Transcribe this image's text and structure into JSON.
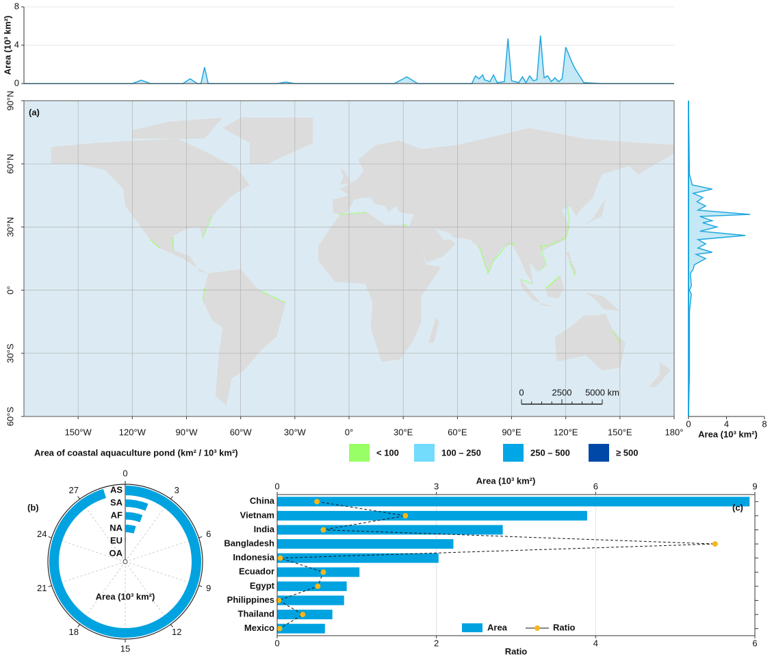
{
  "chart_data": [
    {
      "type": "area",
      "y_label": "Area (10³ km²)",
      "color": "#1fa7df",
      "fill": "#c4e8f6",
      "x": [
        -180,
        -120,
        -115,
        -110,
        -92,
        -88,
        -84,
        -82,
        -80,
        -78,
        -60,
        -40,
        -35,
        -30,
        0,
        25,
        32,
        38,
        60,
        68,
        70,
        72,
        74,
        75,
        78,
        80,
        82,
        86,
        88,
        90,
        94,
        96,
        98,
        100,
        102,
        104,
        106,
        108,
        110,
        112,
        114,
        116,
        118,
        120,
        123,
        125,
        130,
        140,
        180
      ],
      "values": [
        0,
        0,
        0.35,
        0,
        0,
        0.5,
        0,
        0,
        1.7,
        0,
        0,
        0,
        0.15,
        0,
        0,
        0,
        0.7,
        0,
        0,
        0,
        0.8,
        0.5,
        0.9,
        0.4,
        0.2,
        0.9,
        0.1,
        0.2,
        4.7,
        0.3,
        0.1,
        0.7,
        0.1,
        0.8,
        0.3,
        0.4,
        5.0,
        0.6,
        0.8,
        0.2,
        0.6,
        0.2,
        0.5,
        3.8,
        2.4,
        1.6,
        0.1,
        0,
        0
      ],
      "xlim": [
        -180,
        180
      ],
      "ylim": [
        0,
        8
      ],
      "yticks": [
        0,
        4,
        8
      ],
      "grid": true
    },
    {
      "type": "map",
      "label": "(a)",
      "xlim": [
        -180,
        180
      ],
      "ylim": [
        -60,
        90
      ],
      "xticks": [
        {
          "value": -150,
          "label": "150°W"
        },
        {
          "value": -120,
          "label": "120°W"
        },
        {
          "value": -90,
          "label": "90°W"
        },
        {
          "value": -60,
          "label": "60°W"
        },
        {
          "value": -30,
          "label": "30°W"
        },
        {
          "value": 0,
          "label": "0°"
        },
        {
          "value": 30,
          "label": "30°E"
        },
        {
          "value": 60,
          "label": "60°E"
        },
        {
          "value": 90,
          "label": "90°E"
        },
        {
          "value": 120,
          "label": "120°E"
        },
        {
          "value": 150,
          "label": "150°E"
        },
        {
          "value": 180,
          "label": "180°"
        }
      ],
      "yticks": [
        {
          "value": -60,
          "label": "60°S"
        },
        {
          "value": -30,
          "label": "30°S"
        },
        {
          "value": 0,
          "label": "0°"
        },
        {
          "value": 30,
          "label": "30°N"
        },
        {
          "value": 60,
          "label": "60°N"
        },
        {
          "value": 90,
          "label": "90°N"
        }
      ],
      "scale_bar": [
        0,
        2500,
        {
          "value": 5000,
          "label": "5000 km"
        }
      ],
      "legend": {
        "title": "Area of coastal aquaculture pond (km² / 10³ km²)",
        "classes": [
          {
            "label": "< 100",
            "color": "#99ff66"
          },
          {
            "label": "100 – 250",
            "color": "#73dbfc"
          },
          {
            "label": "250 – 500",
            "color": "#00a6e6"
          },
          {
            "label": "≥ 500",
            "color": "#0048a8"
          }
        ]
      }
    },
    {
      "type": "area",
      "x_label": "Area (10³ km²)",
      "color": "#1fa7df",
      "fill": "#c4e8f6",
      "y": [
        -60,
        -40,
        -10,
        -2,
        0,
        2,
        8,
        10,
        12,
        15,
        17,
        18,
        20,
        22,
        24,
        26,
        28,
        30,
        32,
        33,
        35,
        36,
        38,
        40,
        42,
        44,
        46,
        48,
        50,
        55,
        90
      ],
      "values": [
        0,
        0.1,
        0.1,
        0.3,
        0.1,
        0.3,
        0.2,
        0.5,
        0.6,
        1.8,
        0.8,
        2.5,
        1.0,
        1.8,
        1.0,
        6.0,
        1.2,
        3.0,
        1.5,
        2.5,
        1.2,
        6.5,
        1.0,
        1.8,
        0.9,
        1.5,
        0.5,
        2.5,
        0.4,
        0.1,
        0
      ],
      "ylim": [
        -60,
        90
      ],
      "xlim": [
        0,
        8
      ],
      "xticks": [
        0,
        4,
        8
      ]
    },
    {
      "type": "radial-bar",
      "label": "(b)",
      "axis_label": "Area (10³ km²)",
      "color": "#00a3e0",
      "categories": [
        "AS",
        "SA",
        "AF",
        "NA",
        "EU",
        "OA"
      ],
      "values": [
        28.6,
        1.8,
        1.7,
        1.4,
        0.15,
        0.05
      ],
      "ylim": [
        0,
        30
      ],
      "yticks": [
        0,
        3,
        6,
        9,
        12,
        15,
        18,
        21,
        24,
        27
      ]
    },
    {
      "type": "bar-line",
      "label": "(c)",
      "x_label": "Area (10³ km²)",
      "x2_label": "Ratio",
      "categories": [
        "China",
        "Vietnam",
        "India",
        "Bangladesh",
        "Indonesia",
        "Ecuador",
        "Egypt",
        "Philippines",
        "Thailand",
        "Mexico"
      ],
      "series": [
        {
          "name": "Area",
          "color": "#00a3e0",
          "values": [
            8.9,
            5.84,
            4.25,
            3.32,
            3.04,
            1.55,
            1.31,
            1.26,
            1.04,
            0.9
          ]
        },
        {
          "name": "Ratio",
          "color": "#f5b818",
          "axis": "x2",
          "values": [
            0.5,
            1.61,
            0.58,
            5.5,
            0.04,
            0.58,
            0.51,
            0.02,
            0.32,
            0.03
          ]
        }
      ],
      "xlim": [
        0,
        9
      ],
      "xticks": [
        0,
        3,
        6,
        9
      ],
      "x2lim": [
        0,
        6
      ],
      "x2ticks": [
        0,
        2,
        4,
        6
      ],
      "grid": true
    }
  ]
}
